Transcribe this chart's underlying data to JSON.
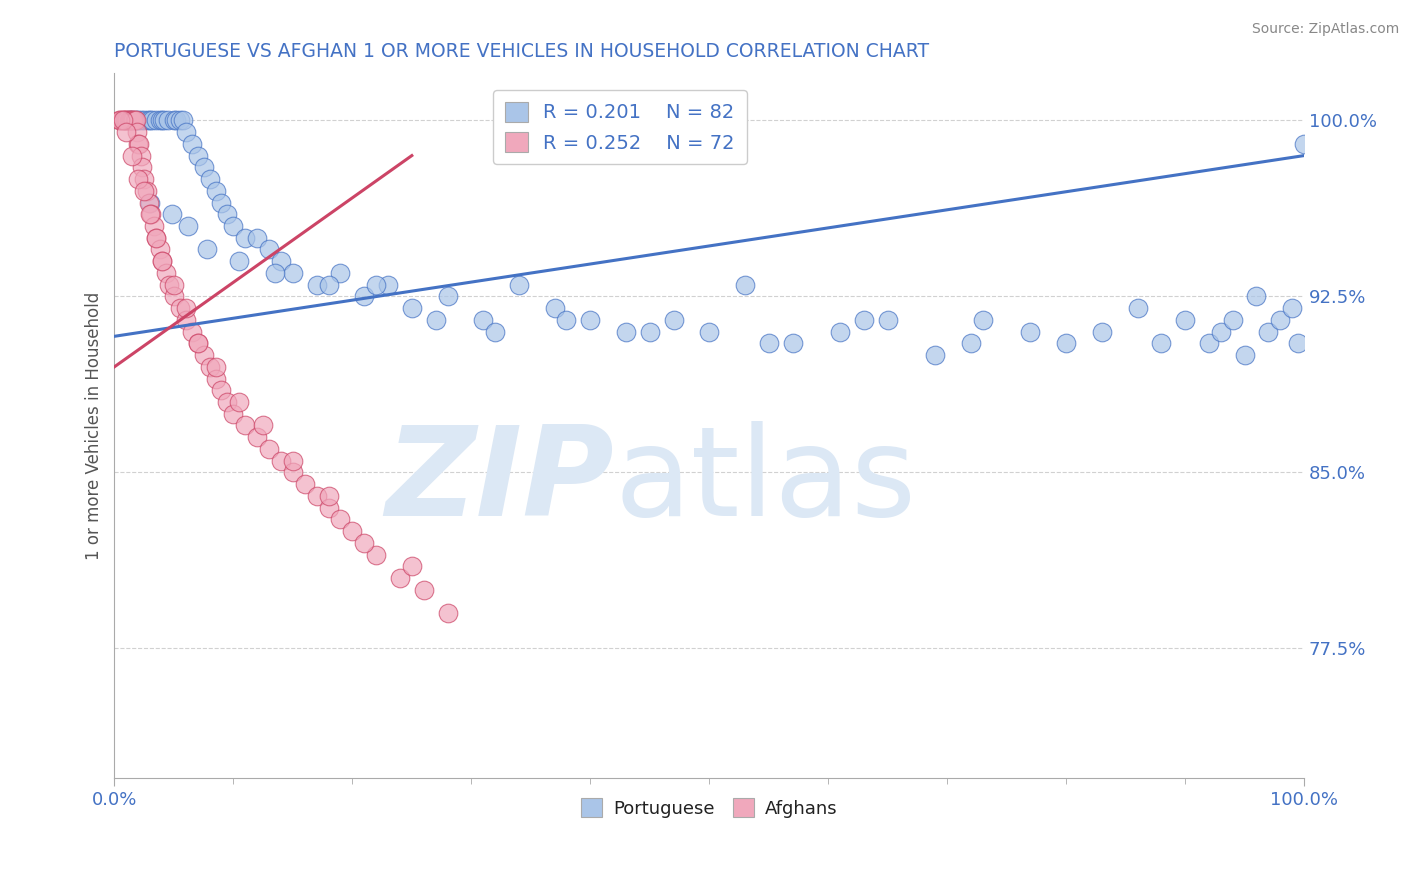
{
  "title": "PORTUGUESE VS AFGHAN 1 OR MORE VEHICLES IN HOUSEHOLD CORRELATION CHART",
  "source_text": "Source: ZipAtlas.com",
  "ylabel": "1 or more Vehicles in Household",
  "xlim": [
    0.0,
    100.0
  ],
  "ylim": [
    72.0,
    102.0
  ],
  "yticks": [
    77.5,
    85.0,
    92.5,
    100.0
  ],
  "ytick_labels": [
    "77.5%",
    "85.0%",
    "92.5%",
    "100.0%"
  ],
  "xticks": [
    0.0,
    100.0
  ],
  "xtick_labels": [
    "0.0%",
    "100.0%"
  ],
  "legend_r1": "R = 0.201",
  "legend_n1": "N = 82",
  "legend_r2": "R = 0.252",
  "legend_n2": "N = 72",
  "color_portuguese": "#aac5e8",
  "color_afghan": "#f0a8bc",
  "color_line_portuguese": "#4472c4",
  "color_line_afghan": "#cc4466",
  "watermark_zip": "ZIP",
  "watermark_atlas": "atlas",
  "watermark_color": "#dce8f5",
  "background_color": "#ffffff",
  "title_color": "#4472c4",
  "source_color": "#888888",
  "tick_color": "#4472c4",
  "legend_label_color": "#4472c4",
  "port_x": [
    1.2,
    1.5,
    1.8,
    2.0,
    2.2,
    2.5,
    2.8,
    3.0,
    3.2,
    3.5,
    3.8,
    4.0,
    4.2,
    4.5,
    5.0,
    5.2,
    5.5,
    5.8,
    6.0,
    6.5,
    7.0,
    7.5,
    8.0,
    8.5,
    9.0,
    9.5,
    10.0,
    11.0,
    12.0,
    13.0,
    14.0,
    15.0,
    17.0,
    19.0,
    21.0,
    23.0,
    25.0,
    28.0,
    31.0,
    34.0,
    37.0,
    40.0,
    43.0,
    47.0,
    50.0,
    53.0,
    57.0,
    61.0,
    65.0,
    69.0,
    73.0,
    77.0,
    80.0,
    83.0,
    86.0,
    88.0,
    90.0,
    92.0,
    93.0,
    94.0,
    95.0,
    96.0,
    97.0,
    98.0,
    99.0,
    99.5,
    100.0,
    3.0,
    4.8,
    6.2,
    7.8,
    10.5,
    13.5,
    18.0,
    22.0,
    27.0,
    32.0,
    38.0,
    45.0,
    55.0,
    63.0,
    72.0
  ],
  "port_y": [
    100.0,
    100.0,
    100.0,
    100.0,
    100.0,
    100.0,
    100.0,
    100.0,
    100.0,
    100.0,
    100.0,
    100.0,
    100.0,
    100.0,
    100.0,
    100.0,
    100.0,
    100.0,
    99.5,
    99.0,
    98.5,
    98.0,
    97.5,
    97.0,
    96.5,
    96.0,
    95.5,
    95.0,
    95.0,
    94.5,
    94.0,
    93.5,
    93.0,
    93.5,
    92.5,
    93.0,
    92.0,
    92.5,
    91.5,
    93.0,
    92.0,
    91.5,
    91.0,
    91.5,
    91.0,
    93.0,
    90.5,
    91.0,
    91.5,
    90.0,
    91.5,
    91.0,
    90.5,
    91.0,
    92.0,
    90.5,
    91.5,
    90.5,
    91.0,
    91.5,
    90.0,
    92.5,
    91.0,
    91.5,
    92.0,
    90.5,
    99.0,
    96.5,
    96.0,
    95.5,
    94.5,
    94.0,
    93.5,
    93.0,
    93.0,
    91.5,
    91.0,
    91.5,
    91.0,
    90.5,
    91.5,
    90.5
  ],
  "afg_x": [
    0.4,
    0.6,
    0.8,
    0.9,
    1.0,
    1.1,
    1.2,
    1.3,
    1.4,
    1.5,
    1.6,
    1.7,
    1.8,
    1.9,
    2.0,
    2.1,
    2.2,
    2.3,
    2.5,
    2.7,
    2.9,
    3.1,
    3.3,
    3.5,
    3.8,
    4.0,
    4.3,
    4.6,
    5.0,
    5.5,
    6.0,
    6.5,
    7.0,
    7.5,
    8.0,
    8.5,
    9.0,
    9.5,
    10.0,
    11.0,
    12.0,
    13.0,
    14.0,
    15.0,
    16.0,
    17.0,
    18.0,
    19.0,
    20.0,
    22.0,
    24.0,
    26.0,
    28.0,
    0.5,
    0.7,
    1.0,
    1.5,
    2.0,
    2.5,
    3.0,
    3.5,
    4.0,
    5.0,
    6.0,
    7.0,
    8.5,
    10.5,
    12.5,
    15.0,
    18.0,
    21.0,
    25.0
  ],
  "afg_y": [
    100.0,
    100.0,
    100.0,
    100.0,
    100.0,
    100.0,
    100.0,
    100.0,
    100.0,
    100.0,
    100.0,
    100.0,
    100.0,
    99.5,
    99.0,
    99.0,
    98.5,
    98.0,
    97.5,
    97.0,
    96.5,
    96.0,
    95.5,
    95.0,
    94.5,
    94.0,
    93.5,
    93.0,
    92.5,
    92.0,
    91.5,
    91.0,
    90.5,
    90.0,
    89.5,
    89.0,
    88.5,
    88.0,
    87.5,
    87.0,
    86.5,
    86.0,
    85.5,
    85.0,
    84.5,
    84.0,
    83.5,
    83.0,
    82.5,
    81.5,
    80.5,
    80.0,
    79.0,
    100.0,
    100.0,
    99.5,
    98.5,
    97.5,
    97.0,
    96.0,
    95.0,
    94.0,
    93.0,
    92.0,
    90.5,
    89.5,
    88.0,
    87.0,
    85.5,
    84.0,
    82.0,
    81.0
  ]
}
